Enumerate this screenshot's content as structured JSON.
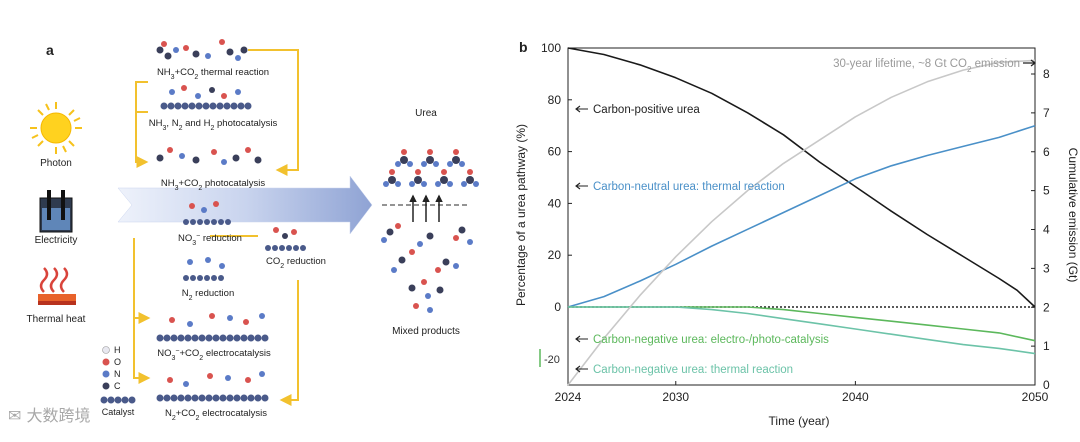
{
  "panel_a": {
    "label": "a",
    "energy_sources": [
      "Photon",
      "Electricity",
      "Thermal heat"
    ],
    "pathways_top": [
      {
        "pre": "NH",
        "sub1": "3",
        "mid": "+CO",
        "sub2": "2",
        "post": " thermal reaction"
      },
      {
        "text": "NH",
        "rest": "3",
        "tail": ", N",
        "tail2": "2",
        "tail3": " and H",
        "tail4": "2",
        "tail5": " photocatalysis"
      },
      {
        "pre": "NH",
        "sub1": "3",
        "mid": "+CO",
        "sub2": "2",
        "post": " photocatalysis"
      }
    ],
    "pathways_bottom": [
      {
        "pre": "NO",
        "sub1": "3",
        "sup": "−",
        "post": " reduction"
      },
      {
        "pre": "CO",
        "sub1": "2",
        "post": " reduction"
      },
      {
        "pre": "N",
        "sub1": "2",
        "post": " reduction"
      },
      {
        "pre": "NO",
        "sub1": "3",
        "sup": "−",
        "mid": "+CO",
        "sub2": "2",
        "post": " electrocatalysis"
      },
      {
        "pre": "N",
        "sub1": "2",
        "mid": "+CO",
        "sub2": "2",
        "post": " electrocatalysis"
      }
    ],
    "urea_label": "Urea",
    "mixed_label": "Mixed products",
    "legend": [
      "H",
      "O",
      "N",
      "C",
      "Catalyst"
    ],
    "colors": {
      "H": "#e8e8f0",
      "O": "#d9534f",
      "N": "#5b7bc7",
      "C": "#3a3f5a",
      "catalyst": "#4a5a8a",
      "arrow_yellow": "#f2c12e"
    }
  },
  "panel_b": {
    "label": "b",
    "annotation_top": {
      "pre": "30-year lifetime, ~8  Gt CO",
      "sub": "2",
      "post": " emission"
    },
    "neg_marker": "-20",
    "watermark": "大数跨境"
  },
  "chart_data": {
    "type": "line",
    "title": "",
    "xlabel": "Time (year)",
    "ylabel": "Percentage of a urea pathway (%)",
    "y2label": "Cumulative emission (Gt)",
    "xlim": [
      2024,
      2050
    ],
    "ylim": [
      -30,
      100
    ],
    "y2lim": [
      0,
      8.65
    ],
    "xticks": [
      2024,
      2030,
      2040,
      2050
    ],
    "yticks": [
      0,
      20,
      40,
      60,
      80,
      100
    ],
    "y2ticks": [
      0,
      1,
      2,
      3,
      4,
      5,
      6,
      7,
      8
    ],
    "series": [
      {
        "name": "Carbon-positive urea",
        "axis": "left",
        "color": "#1a1a1a",
        "x": [
          2024,
          2026,
          2028,
          2030,
          2032,
          2034,
          2036,
          2038,
          2040,
          2042,
          2044,
          2046,
          2048,
          2049,
          2050
        ],
        "y": [
          100,
          97.5,
          93.5,
          88.5,
          82.5,
          75,
          66.5,
          56,
          46.5,
          37,
          28,
          19.5,
          11,
          6.5,
          0
        ]
      },
      {
        "name": "Carbon-neutral urea: thermal reaction",
        "axis": "left",
        "color": "#4a90c8",
        "x": [
          2024,
          2026,
          2028,
          2030,
          2032,
          2034,
          2036,
          2038,
          2040,
          2042,
          2044,
          2046,
          2048,
          2050
        ],
        "y": [
          0,
          4,
          10,
          16.5,
          23.5,
          30,
          36.5,
          43,
          49.5,
          54.5,
          58.5,
          62,
          65.5,
          70
        ]
      },
      {
        "name": "Carbon-negative urea: electro-/photo-catalysis",
        "axis": "left",
        "color": "#5cb85c",
        "x": [
          2024,
          2034,
          2036,
          2038,
          2040,
          2042,
          2044,
          2046,
          2048,
          2050
        ],
        "y": [
          0,
          0,
          -1,
          -2.5,
          -4,
          -5.5,
          -7,
          -8.5,
          -10,
          -13
        ]
      },
      {
        "name": "Carbon-negative urea: thermal reaction",
        "axis": "left",
        "color": "#6cc3a8",
        "x": [
          2024,
          2030,
          2032,
          2034,
          2036,
          2038,
          2040,
          2042,
          2044,
          2046,
          2048,
          2050
        ],
        "y": [
          0,
          0,
          -1,
          -2.5,
          -4.5,
          -6.5,
          -8.5,
          -10.5,
          -12.5,
          -14.5,
          -16,
          -18
        ]
      },
      {
        "name": "Cumulative emission",
        "axis": "right",
        "color": "#c8c8c8",
        "x": [
          2024,
          2026,
          2028,
          2030,
          2032,
          2034,
          2036,
          2038,
          2040,
          2042,
          2044,
          2046,
          2048,
          2050
        ],
        "y": [
          0,
          1.2,
          2.3,
          3.3,
          4.2,
          5.0,
          5.7,
          6.3,
          6.9,
          7.4,
          7.8,
          8.1,
          8.3,
          8.35
        ]
      }
    ],
    "series_labels": [
      "Carbon-positive urea",
      "Carbon-neutral urea: thermal reaction",
      "Carbon-negative urea: electro-/photo-catalysis",
      "Carbon-negative urea: thermal reaction"
    ]
  }
}
